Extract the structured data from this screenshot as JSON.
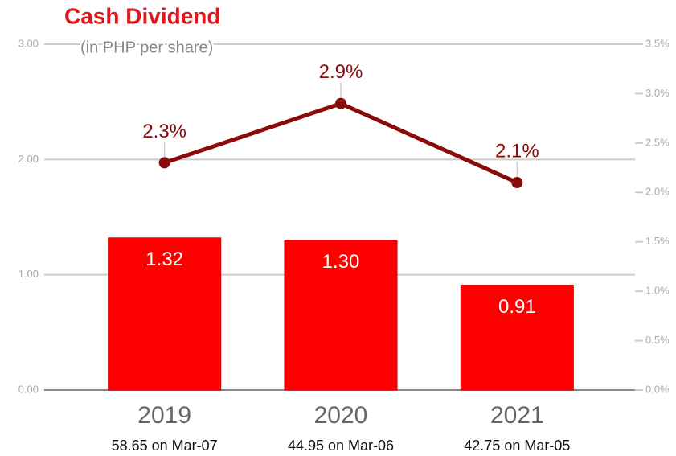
{
  "chart_data": {
    "type": "bar-line",
    "title": "Cash Dividend",
    "subtitle": "(in PHP per share)",
    "categories": [
      "2019",
      "2020",
      "2021"
    ],
    "sublabels": [
      "58.65 on Mar-07",
      "44.95 on Mar-06",
      "42.75 on Mar-05"
    ],
    "series": [
      {
        "type": "bar",
        "color": "#ff0000",
        "values": [
          1.32,
          1.3,
          0.91
        ],
        "value_labels": [
          "1.32",
          "1.30",
          "0.91"
        ]
      },
      {
        "type": "line",
        "axis": "y2",
        "color": "#8b0a0a",
        "values": [
          2.3,
          2.9,
          2.1
        ],
        "value_labels": [
          "2.3%",
          "2.9%",
          "2.1%"
        ]
      }
    ],
    "ylim": [
      0,
      3
    ],
    "yticks": [
      {
        "value": 0,
        "label": "0.00"
      },
      {
        "value": 1,
        "label": "1.00"
      },
      {
        "value": 2,
        "label": "2.00"
      },
      {
        "value": 3,
        "label": "3.00"
      }
    ],
    "y2lim": [
      0,
      3.5
    ],
    "y2ticks": [
      {
        "value": 0,
        "label": "0.0%"
      },
      {
        "value": 0.5,
        "label": "0.5%"
      },
      {
        "value": 1,
        "label": "1.0%"
      },
      {
        "value": 1.5,
        "label": "1.5%"
      },
      {
        "value": 2,
        "label": "2.0%"
      },
      {
        "value": 2.5,
        "label": "2.5%"
      },
      {
        "value": 3,
        "label": "3.0%"
      },
      {
        "value": 3.5,
        "label": "3.5%"
      }
    ],
    "grid": true
  }
}
